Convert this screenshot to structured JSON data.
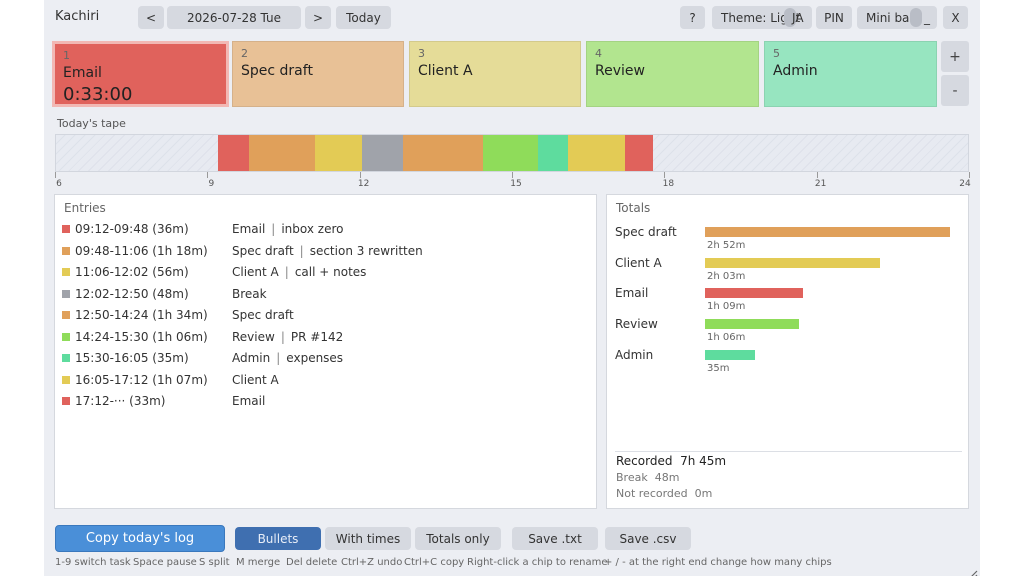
{
  "header": {
    "title": "Kachiri",
    "prev": "<",
    "date": "2026-07-28 Tue",
    "next": ">",
    "today": "Today",
    "help": "?",
    "theme": "Theme: Light",
    "lang": "JA",
    "pin": "PIN",
    "mini": "Mini bar",
    "minimize": "_",
    "close": "X"
  },
  "tasks": [
    {
      "num": "1",
      "label": "Email",
      "time": "0:33:00",
      "color": "#e0625c"
    },
    {
      "num": "2",
      "label": "Spec draft",
      "color": "#e8c196"
    },
    {
      "num": "3",
      "label": "Client A",
      "color": "#e5dc98"
    },
    {
      "num": "4",
      "label": "Review",
      "color": "#b2e58f"
    },
    {
      "num": "5",
      "label": "Admin",
      "color": "#97e5c0"
    }
  ],
  "chip_plus": "+",
  "chip_minus": "-",
  "tape": {
    "label": "Today's tape",
    "ticks": [
      "6",
      "9",
      "12",
      "15",
      "18",
      "21",
      "24"
    ],
    "segments": [
      {
        "start": "09:12",
        "end": "09:48",
        "color": "#e0625c"
      },
      {
        "start": "09:48",
        "end": "11:06",
        "color": "#e0a05a"
      },
      {
        "start": "11:06",
        "end": "12:02",
        "color": "#e3cb55"
      },
      {
        "start": "12:02",
        "end": "12:50",
        "color": "#a0a3aa"
      },
      {
        "start": "12:50",
        "end": "14:24",
        "color": "#e0a05a"
      },
      {
        "start": "14:24",
        "end": "15:30",
        "color": "#8fdc5a"
      },
      {
        "start": "15:30",
        "end": "16:05",
        "color": "#5edc9e"
      },
      {
        "start": "16:05",
        "end": "17:12",
        "color": "#e3cb55"
      },
      {
        "start": "17:12",
        "end": "17:45",
        "color": "#e0625c"
      }
    ]
  },
  "entries": {
    "title": "Entries",
    "rows": [
      {
        "time": "09:12-09:48 (36m)",
        "task": "Email",
        "sep": "|",
        "note": "inbox zero",
        "color": "#e0625c"
      },
      {
        "time": "09:48-11:06 (1h 18m)",
        "task": "Spec draft",
        "sep": "|",
        "note": "section 3 rewritten",
        "color": "#e0a05a"
      },
      {
        "time": "11:06-12:02 (56m)",
        "task": "Client A",
        "sep": "|",
        "note": "call + notes",
        "color": "#e3cb55"
      },
      {
        "time": "12:02-12:50 (48m)",
        "task": "Break",
        "sep": "",
        "note": "",
        "color": "#a0a3aa"
      },
      {
        "time": "12:50-14:24 (1h 34m)",
        "task": "Spec draft",
        "sep": "",
        "note": "",
        "color": "#e0a05a"
      },
      {
        "time": "14:24-15:30 (1h 06m)",
        "task": "Review",
        "sep": "|",
        "note": "PR #142",
        "color": "#8fdc5a"
      },
      {
        "time": "15:30-16:05 (35m)",
        "task": "Admin",
        "sep": "|",
        "note": "expenses",
        "color": "#5edc9e"
      },
      {
        "time": "16:05-17:12 (1h 07m)",
        "task": "Client A",
        "sep": "",
        "note": "",
        "color": "#e3cb55"
      },
      {
        "time": "17:12-··· (33m)",
        "task": "Email",
        "sep": "",
        "note": "",
        "color": "#e0625c"
      }
    ]
  },
  "totals": {
    "title": "Totals",
    "items": [
      {
        "name": "Spec draft",
        "value": "2h 52m",
        "minutes": 172,
        "color": "#e0a05a"
      },
      {
        "name": "Client A",
        "value": "2h 03m",
        "minutes": 123,
        "color": "#e3cb55"
      },
      {
        "name": "Email",
        "value": "1h 09m",
        "minutes": 69,
        "color": "#e0625c"
      },
      {
        "name": "Review",
        "value": "1h 06m",
        "minutes": 66,
        "color": "#8fdc5a"
      },
      {
        "name": "Admin",
        "value": "35m",
        "minutes": 35,
        "color": "#5edc9e"
      }
    ],
    "recorded_label": "Recorded",
    "recorded_value": "7h 45m",
    "break_label": "Break",
    "break_value": "48m",
    "not_recorded_label": "Not recorded",
    "not_recorded_value": "0m"
  },
  "actions": {
    "copy": "Copy today's log",
    "bullets": "Bullets",
    "with_times": "With times",
    "totals_only": "Totals only",
    "save_txt": "Save .txt",
    "save_csv": "Save .csv"
  },
  "hints": [
    "1-9 switch task",
    "Space pause",
    "S split",
    "M merge",
    "Del delete",
    "Ctrl+Z undo",
    "Ctrl+C copy",
    "Right-click a chip to rename",
    "+ / - at the right end change how many chips"
  ]
}
